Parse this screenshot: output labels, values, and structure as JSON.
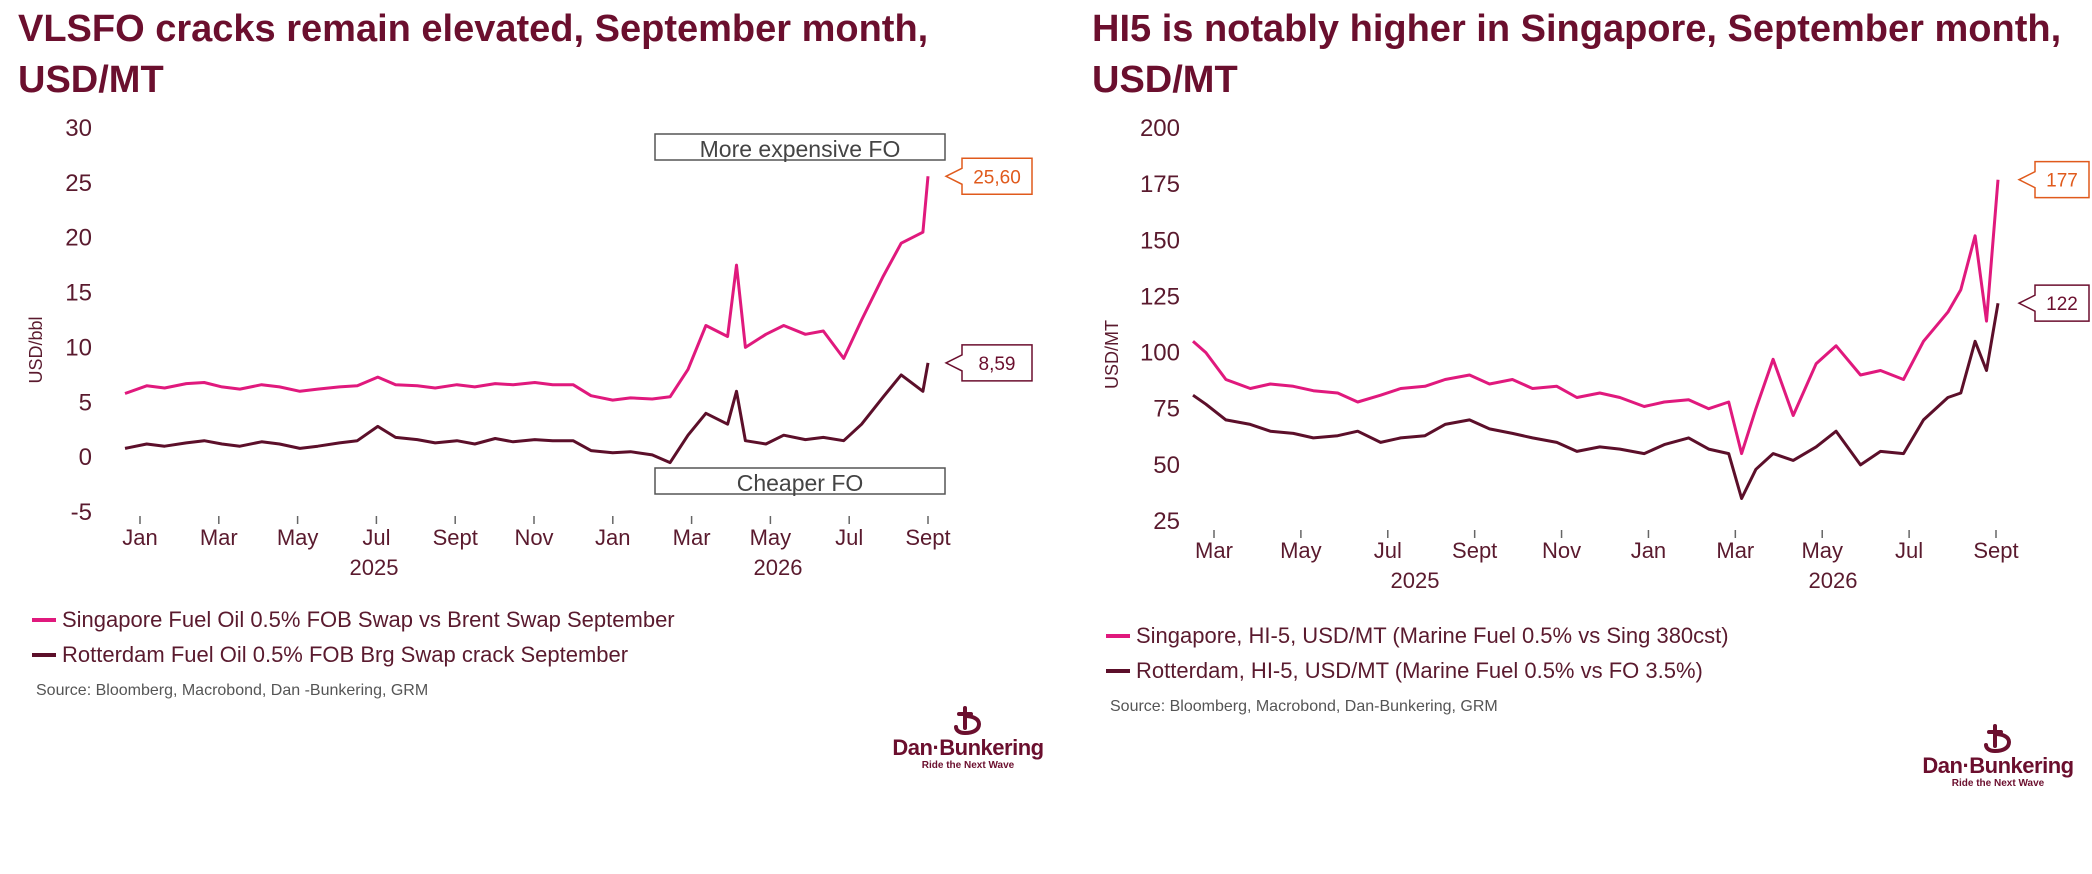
{
  "colors": {
    "title": "#6b0f2e",
    "singapore": "#e0197d",
    "rotterdam": "#5c0f2a",
    "callout_sg": "#e05a1c",
    "callout_rt": "#6b0f2e"
  },
  "left": {
    "title": "VLSFO cracks remain elevated, September month, USD/MT",
    "legend": [
      "Singapore Fuel Oil 0.5% FOB Swap vs Brent Swap September",
      "Rotterdam Fuel Oil 0.5% FOB Brg Swap crack September"
    ],
    "source": "Source: Bloomberg, Macrobond, Dan -Bunkering, GRM",
    "logo": {
      "name": "Dan·Bunkering",
      "tagline": "Ride the Next Wave"
    }
  },
  "right": {
    "title": "HI5 is notably higher in Singapore, September month, USD/MT",
    "legend": [
      "Singapore, HI-5, USD/MT  (Marine Fuel 0.5% vs Sing 380cst)",
      "Rotterdam, HI-5, USD/MT (Marine Fuel 0.5% vs FO 3.5%)"
    ],
    "source": "Source: Bloomberg, Macrobond, Dan-Bunkering, GRM",
    "logo": {
      "name": "Dan·Bunkering",
      "tagline": "Ride the Next Wave"
    }
  },
  "chart_data": [
    {
      "type": "line",
      "title": "VLSFO cracks remain elevated, September month, USD/MT",
      "ylabel": "USD/bbl",
      "ylim": [
        -5,
        30
      ],
      "yticks": [
        "30",
        "25",
        "20",
        "15",
        "10",
        "5",
        "0",
        "-5"
      ],
      "xticks": [
        "Jan",
        "Mar",
        "May",
        "Jul",
        "Sept",
        "Nov",
        "Jan",
        "Mar",
        "May",
        "Jul",
        "Sept"
      ],
      "years": [
        "2025",
        "2026"
      ],
      "annotations": [
        "More expensive FO",
        "Cheaper FO"
      ],
      "x_dates": [
        "2024-12-15",
        "2025-01-01",
        "2025-01-15",
        "2025-02-01",
        "2025-02-15",
        "2025-03-01",
        "2025-03-15",
        "2025-04-01",
        "2025-04-15",
        "2025-05-01",
        "2025-05-15",
        "2025-06-01",
        "2025-06-15",
        "2025-07-01",
        "2025-07-15",
        "2025-08-01",
        "2025-08-15",
        "2025-09-01",
        "2025-09-15",
        "2025-10-01",
        "2025-10-15",
        "2025-11-01",
        "2025-11-15",
        "2025-12-01",
        "2025-12-15",
        "2026-01-01",
        "2026-01-15",
        "2026-02-01",
        "2026-02-15",
        "2026-03-01",
        "2026-03-15",
        "2026-04-01",
        "2026-04-08",
        "2026-04-15",
        "2026-05-01",
        "2026-05-15",
        "2026-06-01",
        "2026-06-15",
        "2026-07-01",
        "2026-07-15",
        "2026-08-01",
        "2026-08-15",
        "2026-09-01",
        "2026-09-05"
      ],
      "series": [
        {
          "name": "Singapore Fuel Oil 0.5% FOB Swap vs Brent Swap September",
          "last_label": "25,60",
          "values": [
            5.8,
            6.5,
            6.3,
            6.7,
            6.8,
            6.4,
            6.2,
            6.6,
            6.4,
            6.0,
            6.2,
            6.4,
            6.5,
            7.3,
            6.6,
            6.5,
            6.3,
            6.6,
            6.4,
            6.7,
            6.6,
            6.8,
            6.6,
            6.6,
            5.6,
            5.2,
            5.4,
            5.3,
            5.5,
            8.0,
            12.0,
            11.0,
            17.5,
            10.0,
            11.2,
            12.0,
            11.2,
            11.5,
            9.0,
            12.5,
            16.5,
            19.5,
            20.5,
            25.6
          ]
        },
        {
          "name": "Rotterdam Fuel Oil 0.5% FOB Brg Swap crack September",
          "last_label": "8,59",
          "values": [
            0.8,
            1.2,
            1.0,
            1.3,
            1.5,
            1.2,
            1.0,
            1.4,
            1.2,
            0.8,
            1.0,
            1.3,
            1.5,
            2.8,
            1.8,
            1.6,
            1.3,
            1.5,
            1.2,
            1.7,
            1.4,
            1.6,
            1.5,
            1.5,
            0.6,
            0.4,
            0.5,
            0.2,
            -0.5,
            2.0,
            4.0,
            3.0,
            6.0,
            1.5,
            1.2,
            2.0,
            1.6,
            1.8,
            1.5,
            3.0,
            5.5,
            7.5,
            6.0,
            8.59
          ]
        }
      ]
    },
    {
      "type": "line",
      "title": "HI5 is notably higher in Singapore, September month, USD/MT",
      "ylabel": "USD/MT",
      "ylim": [
        25,
        200
      ],
      "yticks": [
        "200",
        "175",
        "150",
        "125",
        "100",
        "75",
        "50",
        "25"
      ],
      "xticks": [
        "Mar",
        "May",
        "Jul",
        "Sept",
        "Nov",
        "Jan",
        "Mar",
        "May",
        "Jul",
        "Sept"
      ],
      "years": [
        "2025",
        "2026"
      ],
      "x_dates": [
        "2025-02-20",
        "2025-03-01",
        "2025-03-15",
        "2025-04-01",
        "2025-04-15",
        "2025-05-01",
        "2025-05-15",
        "2025-06-01",
        "2025-06-15",
        "2025-07-01",
        "2025-07-15",
        "2025-08-01",
        "2025-08-15",
        "2025-09-01",
        "2025-09-15",
        "2025-10-01",
        "2025-10-15",
        "2025-11-01",
        "2025-11-15",
        "2025-12-01",
        "2025-12-15",
        "2026-01-01",
        "2026-01-15",
        "2026-02-01",
        "2026-02-15",
        "2026-03-01",
        "2026-03-10",
        "2026-03-20",
        "2026-04-01",
        "2026-04-15",
        "2026-05-01",
        "2026-05-15",
        "2026-06-01",
        "2026-06-15",
        "2026-07-01",
        "2026-07-15",
        "2026-08-01",
        "2026-08-10",
        "2026-08-20",
        "2026-08-28",
        "2026-09-05"
      ],
      "series": [
        {
          "name": "Singapore, HI-5, USD/MT  (Marine Fuel 0.5% vs Sing 380cst)",
          "last_label": "177",
          "values": [
            105,
            100,
            88,
            84,
            86,
            85,
            83,
            82,
            78,
            81,
            84,
            85,
            88,
            90,
            86,
            88,
            84,
            85,
            80,
            82,
            80,
            76,
            78,
            79,
            75,
            78,
            55,
            75,
            97,
            72,
            95,
            103,
            90,
            92,
            88,
            105,
            118,
            128,
            152,
            114,
            177
          ]
        },
        {
          "name": "Rotterdam, HI-5, USD/MT (Marine Fuel 0.5% vs FO 3.5%)",
          "last_label": "122",
          "values": [
            81,
            77,
            70,
            68,
            65,
            64,
            62,
            63,
            65,
            60,
            62,
            63,
            68,
            70,
            66,
            64,
            62,
            60,
            56,
            58,
            57,
            55,
            59,
            62,
            57,
            55,
            35,
            48,
            55,
            52,
            58,
            65,
            50,
            56,
            55,
            70,
            80,
            82,
            105,
            92,
            122
          ]
        }
      ]
    }
  ]
}
